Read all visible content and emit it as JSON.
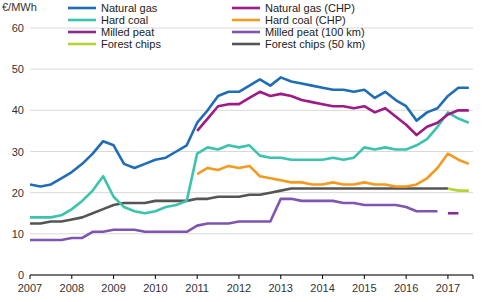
{
  "chart_data": {
    "type": "line",
    "y_label": "€/MWh",
    "x": [
      2007,
      2007.25,
      2007.5,
      2007.75,
      2008,
      2008.25,
      2008.5,
      2008.75,
      2009,
      2009.25,
      2009.5,
      2009.75,
      2010,
      2010.25,
      2010.5,
      2010.75,
      2011,
      2011.25,
      2011.5,
      2011.75,
      2012,
      2012.25,
      2012.5,
      2012.75,
      2013,
      2013.25,
      2013.5,
      2013.75,
      2014,
      2014.25,
      2014.5,
      2014.75,
      2015,
      2015.25,
      2015.5,
      2015.75,
      2016,
      2016.25,
      2016.5,
      2016.75,
      2017,
      2017.25,
      2017.5
    ],
    "xlim": [
      2007,
      2017.6
    ],
    "xticks": [
      2007,
      2008,
      2009,
      2010,
      2011,
      2012,
      2013,
      2014,
      2015,
      2016,
      2017
    ],
    "ylim": [
      0,
      60
    ],
    "yticks": [
      0,
      10,
      20,
      30,
      40,
      50,
      60
    ],
    "grid": true,
    "legend": "top",
    "series": [
      {
        "name": "Natural gas",
        "color": "#1f6db5",
        "values": [
          22,
          21.5,
          22,
          23.5,
          25,
          27,
          29.5,
          32.5,
          31.5,
          27,
          26,
          27,
          28,
          28.5,
          30,
          31.5,
          37,
          40,
          43.5,
          44.5,
          44.5,
          46,
          47.5,
          46,
          48,
          47,
          46.5,
          46,
          45.5,
          45,
          45,
          44.5,
          45,
          43,
          44.5,
          42.5,
          41,
          37.5,
          39.5,
          40.5,
          43.5,
          45.5,
          45.5
        ]
      },
      {
        "name": "Natural gas (CHP)",
        "color": "#9c1b87",
        "values": [
          null,
          null,
          null,
          null,
          null,
          null,
          null,
          null,
          null,
          null,
          null,
          null,
          null,
          null,
          null,
          null,
          35,
          38,
          41,
          41.5,
          41.5,
          43,
          44.5,
          43.5,
          44,
          43.5,
          42.5,
          42,
          41.5,
          41,
          41,
          40.5,
          41,
          39.5,
          40.5,
          38.5,
          36.5,
          34,
          36,
          37,
          39,
          40,
          40
        ]
      },
      {
        "name": "Hard coal",
        "color": "#3cc3ae",
        "values": [
          14,
          14,
          14,
          14.5,
          16,
          18,
          20.5,
          24,
          19,
          16.5,
          15.5,
          15,
          15.5,
          16.5,
          17,
          18,
          29.5,
          31,
          30.5,
          31.5,
          31,
          31.5,
          29,
          28.5,
          28.5,
          28,
          28,
          28,
          28,
          28.5,
          28,
          28.5,
          31,
          30.5,
          31,
          30.5,
          30.5,
          31.5,
          33,
          36,
          39.5,
          38,
          37
        ]
      },
      {
        "name": "Hard coal (CHP)",
        "color": "#f39a1f",
        "values": [
          null,
          null,
          null,
          null,
          null,
          null,
          null,
          null,
          null,
          null,
          null,
          null,
          null,
          null,
          null,
          null,
          24.5,
          26,
          25.5,
          26.5,
          26,
          26.5,
          24,
          23.5,
          23,
          22.5,
          22.5,
          22,
          22,
          22.5,
          22,
          22,
          22.5,
          22,
          22,
          21.5,
          21.5,
          22,
          23.5,
          26,
          29.5,
          28,
          27
        ]
      },
      {
        "name": "Milled peat",
        "color": "#8e2a8f",
        "values": [
          null,
          null,
          null,
          null,
          null,
          null,
          null,
          null,
          null,
          null,
          null,
          null,
          null,
          null,
          null,
          null,
          null,
          null,
          null,
          null,
          null,
          null,
          null,
          null,
          null,
          null,
          null,
          null,
          null,
          null,
          null,
          null,
          null,
          null,
          null,
          null,
          null,
          null,
          null,
          null,
          15,
          15,
          null
        ]
      },
      {
        "name": "Milled peat (100 km)",
        "color": "#8055b0",
        "values": [
          8.5,
          8.5,
          8.5,
          8.5,
          9,
          9,
          10.5,
          10.5,
          11,
          11,
          11,
          10.5,
          10.5,
          10.5,
          10.5,
          10.5,
          12,
          12.5,
          12.5,
          12.5,
          13,
          13,
          13,
          13,
          18.5,
          18.5,
          18,
          18,
          18,
          18,
          17.5,
          17.5,
          17,
          17,
          17,
          17,
          16.5,
          15.5,
          15.5,
          15.5,
          null,
          null,
          null
        ]
      },
      {
        "name": "Forest chips",
        "color": "#b6d43a",
        "values": [
          null,
          null,
          null,
          null,
          null,
          null,
          null,
          null,
          null,
          null,
          null,
          null,
          null,
          null,
          null,
          null,
          null,
          null,
          null,
          null,
          null,
          null,
          null,
          null,
          null,
          null,
          null,
          null,
          null,
          null,
          null,
          null,
          null,
          null,
          null,
          null,
          null,
          null,
          null,
          null,
          21,
          20.5,
          20.5
        ]
      },
      {
        "name": "Forest chips (50 km)",
        "color": "#555555",
        "values": [
          12.5,
          12.5,
          13,
          13,
          13.5,
          14,
          15,
          16,
          17,
          17.5,
          17.5,
          17.5,
          18,
          18,
          18,
          18,
          18.5,
          18.5,
          19,
          19,
          19,
          19.5,
          19.5,
          20,
          20.5,
          21,
          21,
          21,
          21,
          21,
          21,
          21,
          21,
          21,
          21,
          21,
          21,
          21,
          21,
          21,
          21,
          null,
          null
        ]
      }
    ]
  }
}
